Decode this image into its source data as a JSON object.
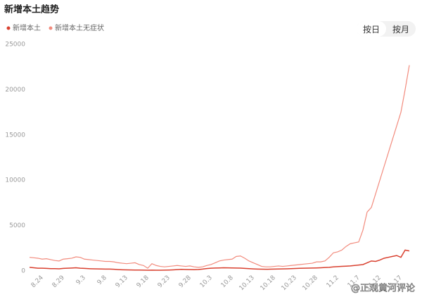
{
  "chart_data": {
    "type": "line",
    "title": "新增本土趋势",
    "buttons": [
      "按日",
      "按月"
    ],
    "watermark": "@正观黄河评论",
    "categories": [
      null,
      null,
      null,
      "8.24",
      null,
      null,
      null,
      null,
      "8.29",
      null,
      null,
      null,
      null,
      "9.3",
      null,
      null,
      null,
      null,
      "9.8",
      null,
      null,
      null,
      null,
      "9.13",
      null,
      null,
      null,
      null,
      "9.18",
      null,
      null,
      null,
      null,
      "9.23",
      null,
      null,
      null,
      null,
      "9.28",
      null,
      null,
      null,
      null,
      "10.3",
      null,
      null,
      null,
      null,
      "10.8",
      null,
      null,
      null,
      null,
      "10.13",
      null,
      null,
      null,
      null,
      "10.18",
      null,
      null,
      null,
      null,
      "10.23",
      null,
      null,
      null,
      null,
      "10.28",
      null,
      null,
      null,
      null,
      "11.2",
      null,
      null,
      null,
      null,
      "11.7",
      null,
      null,
      null,
      null,
      "11.12",
      null,
      null,
      null,
      null,
      "11.17",
      null,
      null
    ],
    "series": [
      {
        "name": "新增本土",
        "color": "#d9402f",
        "values": [
          400,
          350,
          300,
          300,
          280,
          250,
          250,
          230,
          280,
          300,
          320,
          350,
          300,
          280,
          250,
          230,
          220,
          210,
          200,
          200,
          180,
          150,
          130,
          120,
          110,
          100,
          100,
          90,
          80,
          90,
          80,
          80,
          90,
          100,
          120,
          150,
          170,
          160,
          150,
          140,
          160,
          200,
          260,
          300,
          320,
          330,
          350,
          340,
          330,
          320,
          310,
          280,
          250,
          220,
          200,
          190,
          180,
          190,
          200,
          210,
          220,
          230,
          250,
          270,
          290,
          300,
          310,
          320,
          330,
          350,
          380,
          400,
          450,
          480,
          500,
          520,
          550,
          600,
          650,
          700,
          900,
          1100,
          1050,
          1200,
          1400,
          1500,
          1600,
          1700,
          1500,
          2300,
          2200
        ]
      },
      {
        "name": "新增本土无症状",
        "color": "#f28b7d",
        "values": [
          1500,
          1450,
          1400,
          1300,
          1350,
          1250,
          1150,
          1100,
          1300,
          1350,
          1400,
          1550,
          1500,
          1300,
          1250,
          1200,
          1150,
          1100,
          1050,
          1050,
          1000,
          900,
          850,
          800,
          850,
          900,
          700,
          600,
          300,
          800,
          600,
          500,
          450,
          500,
          550,
          600,
          550,
          500,
          550,
          450,
          400,
          450,
          600,
          700,
          900,
          1100,
          1200,
          1250,
          1300,
          1600,
          1650,
          1400,
          1100,
          900,
          700,
          500,
          450,
          450,
          500,
          550,
          500,
          550,
          600,
          650,
          700,
          750,
          800,
          850,
          1000,
          1000,
          1100,
          1500,
          2000,
          2100,
          2300,
          2700,
          3000,
          3100,
          3200,
          4500,
          6500,
          7000,
          8500,
          10000,
          11500,
          13000,
          14500,
          16000,
          17500,
          20000,
          22700
        ]
      }
    ],
    "ylim": [
      0,
      25000
    ],
    "yticks": [
      0,
      5000,
      10000,
      15000,
      20000,
      25000
    ],
    "grid": false
  }
}
